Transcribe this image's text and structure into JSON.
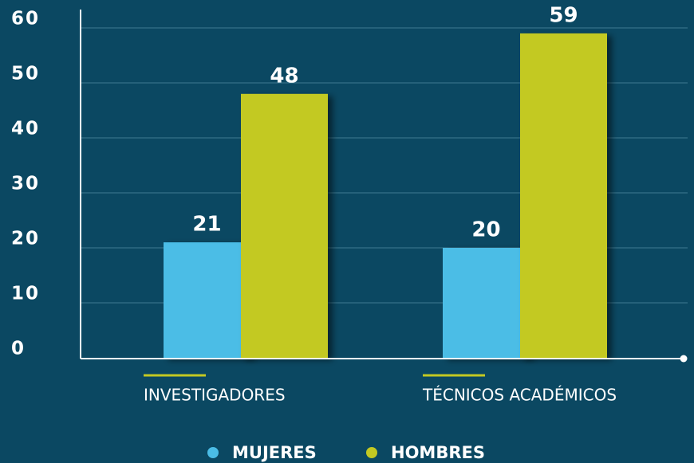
{
  "chart_data": {
    "type": "bar",
    "categories": [
      "INVESTIGADORES",
      "TÉCNICOS ACADÉMICOS"
    ],
    "series": [
      {
        "name": "MUJERES",
        "color": "#4bbde6",
        "values": [
          21,
          20
        ]
      },
      {
        "name": "HOMBRES",
        "color": "#c3c922",
        "values": [
          48,
          59
        ]
      }
    ],
    "ylim": [
      0,
      60
    ],
    "yticks": [
      0,
      10,
      20,
      30,
      40,
      50,
      60
    ],
    "grid": true
  }
}
